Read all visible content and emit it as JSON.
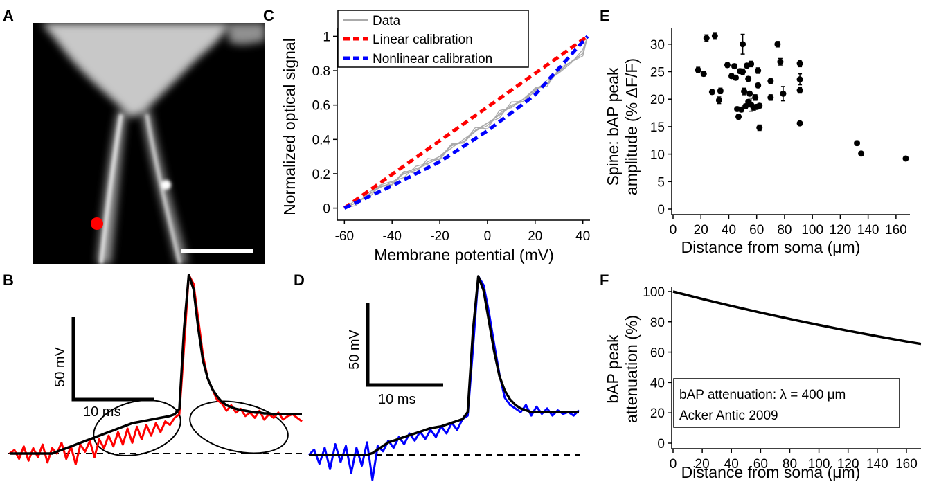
{
  "panel_labels": [
    "A",
    "B",
    "C",
    "D",
    "E",
    "F"
  ],
  "chart_data": [
    {
      "panel": "A",
      "type": "image",
      "description_marker_color": "#ff0000"
    },
    {
      "panel": "B",
      "type": "line",
      "scalebar": {
        "v_label": "50 mV",
        "h_label": "10 ms"
      },
      "series": [
        {
          "color": "#ff0000",
          "values": [
            0,
            2,
            -3,
            4,
            -4,
            3,
            -2,
            5,
            -5,
            3,
            0,
            6,
            -3,
            4,
            -6,
            5,
            1,
            7,
            -2,
            8,
            3,
            10,
            4,
            12,
            5,
            14,
            6,
            15,
            8,
            16,
            10,
            17,
            12,
            18,
            16,
            20,
            22,
            60,
            100,
            95,
            75,
            55,
            42,
            36,
            30,
            28,
            24,
            27,
            23,
            25,
            21,
            23,
            20,
            24,
            19,
            22,
            20,
            23,
            19,
            21,
            22,
            20,
            18
          ]
        },
        {
          "color": "#000000",
          "values": [
            0,
            0,
            0,
            0,
            0,
            0,
            0,
            0,
            0,
            0,
            1,
            2,
            3,
            4,
            5,
            6,
            7,
            8,
            9,
            10,
            11,
            12,
            13,
            14,
            15,
            16,
            17,
            17.5,
            18,
            18.5,
            19,
            19.5,
            20,
            20.5,
            21,
            22,
            25,
            70,
            100,
            92,
            70,
            52,
            42,
            36,
            32,
            29,
            27,
            26,
            25,
            24.5,
            24,
            23.5,
            23,
            23,
            22.5,
            22.5,
            22,
            22,
            22,
            22,
            22,
            22,
            22
          ]
        }
      ]
    },
    {
      "panel": "C",
      "type": "line",
      "xlabel": "Membrane potential (mV)",
      "ylabel": "Normalized optical signal",
      "xlim": [
        -63,
        43
      ],
      "ylim": [
        -0.05,
        1.05
      ],
      "xticks": [
        -60,
        -40,
        -20,
        0,
        20,
        40
      ],
      "yticks": [
        0,
        0.2,
        0.4,
        0.6,
        0.8,
        1
      ],
      "legend": "top-left",
      "series": [
        {
          "name": "Data",
          "color": "#aaaaaa",
          "x": [
            -60,
            -55,
            -50,
            -45,
            -40,
            -35,
            -30,
            -25,
            -20,
            -15,
            -10,
            -5,
            0,
            5,
            10,
            15,
            20,
            25,
            30,
            35,
            40,
            42
          ],
          "y": [
            0,
            0.03,
            0.08,
            0.12,
            0.15,
            0.2,
            0.22,
            0.27,
            0.3,
            0.35,
            0.4,
            0.45,
            0.48,
            0.55,
            0.6,
            0.62,
            0.7,
            0.72,
            0.8,
            0.85,
            0.9,
            1
          ]
        },
        {
          "name": "Linear calibration",
          "color": "#ff0000",
          "x": [
            -60,
            42
          ],
          "y": [
            0,
            1
          ]
        },
        {
          "name": "Nonlinear calibration",
          "color": "#0000ff",
          "x": [
            -60,
            -40,
            -20,
            0,
            20,
            42
          ],
          "y": [
            0,
            0.13,
            0.27,
            0.45,
            0.66,
            1
          ]
        }
      ]
    },
    {
      "panel": "D",
      "type": "line",
      "scalebar": {
        "v_label": "50 mV",
        "h_label": "10 ms"
      },
      "series": [
        {
          "color": "#0000ff",
          "values": [
            0,
            3,
            -5,
            4,
            -8,
            6,
            -4,
            5,
            -10,
            4,
            -6,
            7,
            -14,
            5,
            2,
            8,
            4,
            10,
            6,
            12,
            8,
            13,
            9,
            14,
            10,
            16,
            12,
            18,
            14,
            20,
            22,
            60,
            100,
            95,
            80,
            62,
            45,
            32,
            28,
            26,
            24,
            28,
            22,
            27,
            23,
            26,
            22,
            25,
            23,
            24,
            22,
            25
          ]
        },
        {
          "color": "#000000",
          "values": [
            0,
            0,
            0,
            0,
            0,
            0,
            0,
            0,
            0,
            0,
            0,
            0,
            1,
            3,
            5,
            7,
            8,
            9,
            10,
            11,
            12,
            13,
            14,
            15,
            15.5,
            16,
            17,
            18,
            19,
            20,
            24,
            70,
            100,
            92,
            75,
            58,
            44,
            36,
            31,
            28,
            26,
            25,
            24,
            24,
            24,
            24,
            24,
            24,
            24,
            24,
            24,
            24
          ]
        }
      ]
    },
    {
      "panel": "E",
      "type": "scatter",
      "xlabel": "Distance from soma (μm)",
      "ylabel_line1": "Spine: bAP peak",
      "ylabel_line2": "amplitude (% ΔF/F)",
      "xlim": [
        0,
        170
      ],
      "ylim": [
        0,
        33
      ],
      "xticks": [
        0,
        20,
        40,
        60,
        80,
        100,
        120,
        140,
        160
      ],
      "yticks": [
        0,
        5,
        10,
        15,
        20,
        25,
        30
      ],
      "points": [
        {
          "x": 18,
          "y": 25.3,
          "e": 0.5
        },
        {
          "x": 22,
          "y": 24.6,
          "e": 0.4
        },
        {
          "x": 24,
          "y": 31.1,
          "e": 0.6
        },
        {
          "x": 28,
          "y": 21.3,
          "e": 0.4
        },
        {
          "x": 30,
          "y": 31.5,
          "e": 0.6
        },
        {
          "x": 33,
          "y": 19.8,
          "e": 0.6
        },
        {
          "x": 34,
          "y": 21.5,
          "e": 0.5
        },
        {
          "x": 39,
          "y": 26.2,
          "e": 0.4
        },
        {
          "x": 42,
          "y": 24.2,
          "e": 0.4
        },
        {
          "x": 44,
          "y": 26.0,
          "e": 0.4
        },
        {
          "x": 45,
          "y": 23.9,
          "e": 0.4
        },
        {
          "x": 46,
          "y": 18.2,
          "e": 0.4
        },
        {
          "x": 47,
          "y": 16.8,
          "e": 0.4
        },
        {
          "x": 48,
          "y": 25.1,
          "e": 0.4
        },
        {
          "x": 49,
          "y": 18.1,
          "e": 0.4
        },
        {
          "x": 50,
          "y": 30.0,
          "e": 1.8
        },
        {
          "x": 50,
          "y": 25.0,
          "e": 0.5
        },
        {
          "x": 51,
          "y": 21.4,
          "e": 0.6
        },
        {
          "x": 52,
          "y": 18.7,
          "e": 0.4
        },
        {
          "x": 53,
          "y": 26.1,
          "e": 0.4
        },
        {
          "x": 54,
          "y": 23.7,
          "e": 0.4
        },
        {
          "x": 54,
          "y": 19.5,
          "e": 0.4
        },
        {
          "x": 55,
          "y": 21.0,
          "e": 0.4
        },
        {
          "x": 56,
          "y": 26.4,
          "e": 0.5
        },
        {
          "x": 56,
          "y": 19.0,
          "e": 1.2
        },
        {
          "x": 58,
          "y": 18.5,
          "e": 0.5
        },
        {
          "x": 59,
          "y": 20.3,
          "e": 0.5
        },
        {
          "x": 60,
          "y": 18.6,
          "e": 0.4
        },
        {
          "x": 61,
          "y": 22.5,
          "e": 0.4
        },
        {
          "x": 61,
          "y": 25.2,
          "e": 0.5
        },
        {
          "x": 62,
          "y": 14.8,
          "e": 0.5
        },
        {
          "x": 62,
          "y": 18.8,
          "e": 0.4
        },
        {
          "x": 70,
          "y": 23.3,
          "e": 0.4
        },
        {
          "x": 70,
          "y": 20.3,
          "e": 0.5
        },
        {
          "x": 75,
          "y": 30.0,
          "e": 0.5
        },
        {
          "x": 77,
          "y": 26.8,
          "e": 0.6
        },
        {
          "x": 79,
          "y": 21.0,
          "e": 1.3
        },
        {
          "x": 91,
          "y": 26.5,
          "e": 0.6
        },
        {
          "x": 91,
          "y": 23.6,
          "e": 1.0
        },
        {
          "x": 91,
          "y": 21.6,
          "e": 0.5
        },
        {
          "x": 91,
          "y": 15.6,
          "e": 0.3
        },
        {
          "x": 132,
          "y": 12.0,
          "e": 0.4
        },
        {
          "x": 135,
          "y": 10.1,
          "e": 0.3
        },
        {
          "x": 167,
          "y": 9.2,
          "e": 0.3
        }
      ]
    },
    {
      "panel": "F",
      "type": "line",
      "xlabel": "Distance from soma (μm)",
      "ylabel_line1": "bAP peak",
      "ylabel_line2": "attenuation (%)",
      "xlim": [
        0,
        170
      ],
      "ylim": [
        0,
        105
      ],
      "xticks": [
        0,
        20,
        40,
        60,
        80,
        100,
        120,
        140,
        160
      ],
      "yticks": [
        0,
        20,
        40,
        60,
        80,
        100
      ],
      "lambda_um": 400,
      "annotation_line1": "bAP attenuation: λ = 400 μm",
      "annotation_line2": "Acker Antic 2009",
      "series": [
        {
          "x": [
            0,
            20,
            40,
            60,
            80,
            100,
            120,
            140,
            160,
            170
          ],
          "y": [
            100,
            95.1,
            90.5,
            86.1,
            81.9,
            77.9,
            74.1,
            70.5,
            67.0,
            65.4
          ]
        }
      ]
    }
  ]
}
